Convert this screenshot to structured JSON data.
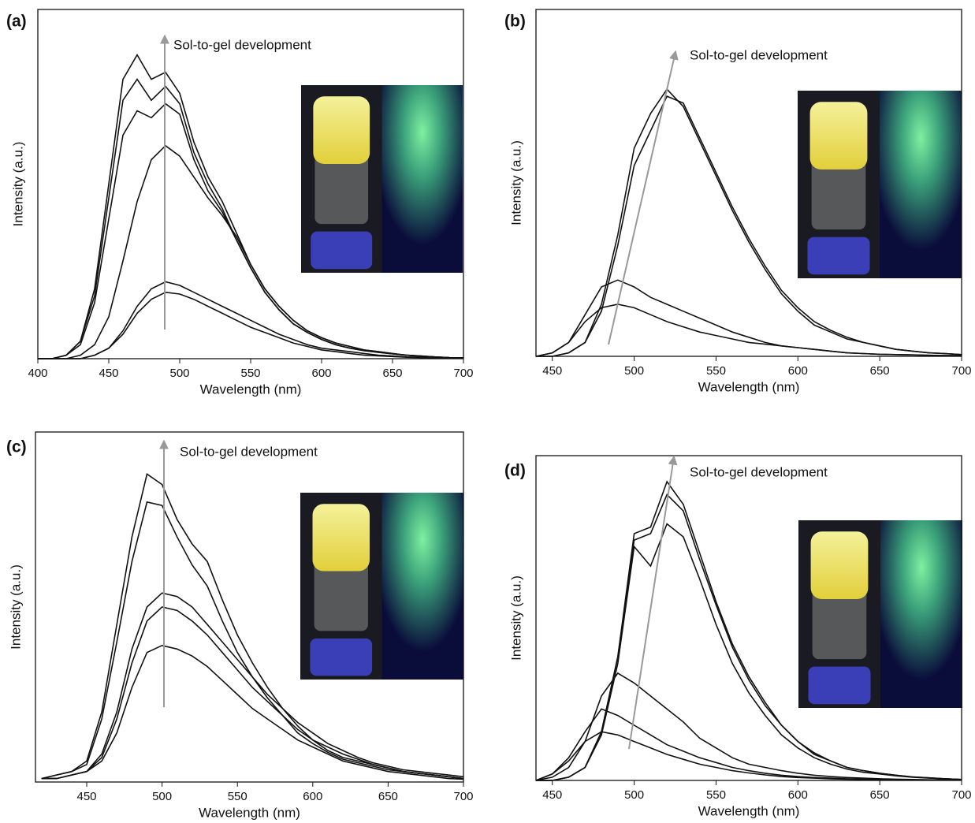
{
  "chart_data": [
    {
      "type": "line",
      "panel_label": "(a)",
      "annotation": "Sol-to-gel development",
      "xlabel": "Wavelength (nm)",
      "ylabel": "Intensity (a.u.)",
      "xlim": [
        400,
        700
      ],
      "xticks": [
        400,
        450,
        500,
        550,
        600,
        650,
        700
      ],
      "ylim": [
        0,
        100
      ],
      "color": "#111111",
      "x": [
        400,
        410,
        420,
        430,
        440,
        450,
        460,
        470,
        480,
        490,
        500,
        510,
        520,
        530,
        540,
        550,
        560,
        570,
        580,
        590,
        600,
        610,
        620,
        630,
        640,
        650,
        660,
        670,
        680,
        690,
        700
      ],
      "series": [
        {
          "values": [
            0,
            0,
            1,
            5,
            20,
            50,
            80,
            87,
            80,
            82,
            76,
            62,
            52,
            45,
            36,
            27,
            20,
            15,
            11,
            8,
            6,
            4.5,
            3.5,
            2.5,
            2,
            1.5,
            1,
            0.8,
            0.5,
            0.3,
            0.2
          ]
        },
        {
          "values": [
            0,
            0,
            1,
            5,
            18,
            46,
            74,
            80,
            74,
            78,
            73,
            59,
            50,
            43,
            34,
            26,
            19,
            14,
            10,
            7.5,
            5.5,
            4,
            3,
            2.3,
            1.8,
            1.4,
            1,
            0.7,
            0.5,
            0.3,
            0.2
          ]
        },
        {
          "values": [
            0,
            0,
            1,
            4,
            16,
            40,
            64,
            71,
            69,
            73,
            70,
            57,
            48,
            42,
            34,
            26,
            19,
            14,
            10,
            7.5,
            5.5,
            4,
            3,
            2.3,
            1.8,
            1.4,
            1,
            0.7,
            0.5,
            0.3,
            0.2
          ]
        },
        {
          "values": [
            0,
            0,
            0,
            1,
            4,
            12,
            28,
            45,
            57,
            61,
            58,
            52,
            46,
            41,
            35,
            27,
            20,
            15,
            11,
            8,
            6,
            4.5,
            3.5,
            2.5,
            2,
            1.5,
            1,
            0.8,
            0.5,
            0.3,
            0.2
          ]
        },
        {
          "values": [
            0,
            0,
            0,
            0,
            1,
            3,
            8,
            15,
            20,
            22,
            21,
            19,
            17,
            15,
            13,
            11,
            9,
            7,
            5.5,
            4,
            3,
            2.5,
            2,
            1.5,
            1,
            0.8,
            0.5,
            0.4,
            0.3,
            0.2,
            0.1
          ]
        },
        {
          "values": [
            0,
            0,
            0,
            0,
            1,
            3,
            7,
            13,
            17,
            19,
            18.5,
            17,
            15,
            13,
            11,
            9,
            7.5,
            6,
            4.5,
            3.5,
            2.5,
            2,
            1.5,
            1,
            0.8,
            0.6,
            0.4,
            0.3,
            0.2,
            0.1,
            0.1
          ]
        }
      ]
    },
    {
      "type": "line",
      "panel_label": "(b)",
      "annotation": "Sol-to-gel development",
      "xlabel": "Wavelength (nm)",
      "ylabel": "Intensity (a.u.)",
      "xlim": [
        440,
        700
      ],
      "xticks": [
        450,
        500,
        550,
        600,
        650,
        700
      ],
      "ylim": [
        0,
        100
      ],
      "color": "#111111",
      "x": [
        440,
        450,
        460,
        470,
        480,
        490,
        500,
        510,
        520,
        530,
        540,
        550,
        560,
        570,
        580,
        590,
        600,
        610,
        620,
        630,
        640,
        650,
        660,
        670,
        680,
        690,
        700
      ],
      "series": [
        {
          "values": [
            0,
            0,
            1,
            4,
            15,
            35,
            60,
            70,
            77,
            72,
            62,
            52,
            42,
            33,
            25,
            18,
            13,
            9,
            7,
            5,
            4,
            3,
            2,
            1.5,
            1,
            0.8,
            0.5
          ]
        },
        {
          "values": [
            0,
            0,
            1,
            4,
            13,
            32,
            55,
            65,
            75,
            73,
            63,
            53,
            43,
            34,
            26,
            19,
            14,
            10,
            7.5,
            5.5,
            4,
            3,
            2,
            1.5,
            1,
            0.8,
            0.5
          ]
        },
        {
          "values": [
            0,
            1,
            4,
            12,
            20,
            22,
            20,
            17,
            15,
            13,
            11,
            9,
            7,
            5.5,
            4,
            3,
            2.5,
            2,
            1.5,
            1,
            0.8,
            0.6,
            0.5,
            0.4,
            0.3,
            0.2,
            0.2
          ]
        },
        {
          "values": [
            0,
            1,
            4,
            10,
            14,
            15,
            14,
            12,
            10,
            8.5,
            7,
            6,
            5,
            4,
            3.5,
            3,
            2.5,
            2,
            1.5,
            1,
            0.8,
            0.6,
            0.5,
            0.4,
            0.3,
            0.2,
            0.2
          ]
        }
      ]
    },
    {
      "type": "line",
      "panel_label": "(c)",
      "annotation": "Sol-to-gel development",
      "xlabel": "Wavelength (nm)",
      "ylabel": "Intensity (a.u.)",
      "xlim": [
        416,
        700
      ],
      "xticks": [
        450,
        500,
        550,
        600,
        650,
        700
      ],
      "ylim": [
        0,
        100
      ],
      "color": "#111111",
      "x": [
        420,
        430,
        440,
        450,
        460,
        470,
        480,
        490,
        500,
        510,
        520,
        530,
        540,
        550,
        560,
        570,
        580,
        590,
        600,
        610,
        620,
        630,
        640,
        650,
        660,
        670,
        680,
        690,
        700
      ],
      "series": [
        {
          "values": [
            1,
            2,
            3,
            6,
            20,
            45,
            70,
            88,
            85,
            75,
            68,
            63,
            52,
            42,
            34,
            27,
            21,
            16,
            12,
            9,
            7,
            6,
            5,
            4,
            3,
            2.5,
            2,
            1.5,
            1
          ]
        },
        {
          "values": [
            1,
            2,
            3,
            5,
            18,
            40,
            63,
            80,
            79,
            70,
            62,
            56,
            46,
            37,
            30,
            24,
            19,
            14,
            11,
            8.5,
            6.5,
            5.5,
            4.5,
            3.5,
            3,
            2.5,
            2,
            1.5,
            1
          ]
        },
        {
          "values": [
            1,
            1,
            2,
            3,
            8,
            20,
            38,
            50,
            54,
            53,
            50,
            45,
            40,
            35,
            30,
            25,
            21,
            17,
            14,
            11,
            9,
            7,
            5.5,
            4.5,
            3.5,
            3,
            2.5,
            2,
            1.5
          ]
        },
        {
          "values": [
            1,
            1,
            2,
            3,
            7,
            18,
            34,
            46,
            50,
            49,
            46,
            42,
            37,
            32,
            27,
            23,
            19,
            15,
            12,
            10,
            8,
            6.5,
            5,
            4,
            3,
            2.5,
            2,
            1.5,
            1
          ]
        },
        {
          "values": [
            1,
            1,
            2,
            3,
            6,
            14,
            27,
            37,
            39,
            38,
            36,
            33,
            29,
            25,
            21,
            18,
            15,
            12,
            10,
            8,
            6,
            5,
            4,
            3,
            2.5,
            2,
            1.5,
            1,
            0.8
          ]
        }
      ]
    },
    {
      "type": "line",
      "panel_label": "(d)",
      "annotation": "Sol-to-gel development",
      "xlabel": "Wavelength (nm)",
      "ylabel": "Intensity (a.u.)",
      "xlim": [
        440,
        700
      ],
      "xticks": [
        450,
        500,
        550,
        600,
        650,
        700
      ],
      "ylim": [
        0,
        100
      ],
      "color": "#111111",
      "x": [
        440,
        450,
        460,
        470,
        480,
        490,
        500,
        510,
        520,
        530,
        540,
        550,
        560,
        570,
        580,
        590,
        600,
        610,
        620,
        630,
        640,
        650,
        660,
        670,
        680,
        690,
        700
      ],
      "series": [
        {
          "values": [
            0,
            0,
            1,
            4,
            15,
            38,
            76,
            78,
            92,
            85,
            70,
            55,
            42,
            32,
            24,
            17,
            12,
            8.5,
            6,
            4,
            3,
            2.2,
            1.6,
            1.1,
            0.8,
            0.5,
            0.3
          ]
        },
        {
          "values": [
            0,
            0,
            1,
            4,
            15,
            38,
            74,
            76,
            88,
            83,
            68,
            54,
            41,
            31,
            23,
            17,
            12,
            8,
            6,
            4,
            3,
            2.2,
            1.6,
            1.1,
            0.8,
            0.5,
            0.3
          ]
        },
        {
          "values": [
            0,
            0,
            1,
            4,
            14,
            36,
            72,
            66,
            79,
            75,
            62,
            48,
            36,
            27,
            20,
            14,
            10,
            7,
            5,
            3.5,
            2.5,
            2,
            1.4,
            1,
            0.7,
            0.5,
            0.3
          ]
        },
        {
          "values": [
            0,
            1,
            4,
            12,
            26,
            33,
            30,
            26,
            22,
            18,
            13,
            10,
            7,
            5,
            4,
            3,
            2.2,
            1.6,
            1.2,
            0.9,
            0.7,
            0.5,
            0.4,
            0.3,
            0.2,
            0.1,
            0.1
          ]
        },
        {
          "values": [
            0,
            2,
            7,
            15,
            22,
            20,
            17,
            14,
            11,
            9,
            7,
            5.5,
            4,
            3,
            2.2,
            1.6,
            1.2,
            0.9,
            0.7,
            0.5,
            0.4,
            0.3,
            0.2,
            0.2,
            0.1,
            0.1,
            0.1
          ]
        },
        {
          "values": [
            0,
            2,
            6,
            12,
            15,
            14,
            12,
            10,
            8,
            6.5,
            5,
            4,
            3,
            2.3,
            1.7,
            1.2,
            0.9,
            0.7,
            0.5,
            0.4,
            0.3,
            0.2,
            0.2,
            0.1,
            0.1,
            0.1,
            0.1
          ]
        }
      ]
    }
  ]
}
